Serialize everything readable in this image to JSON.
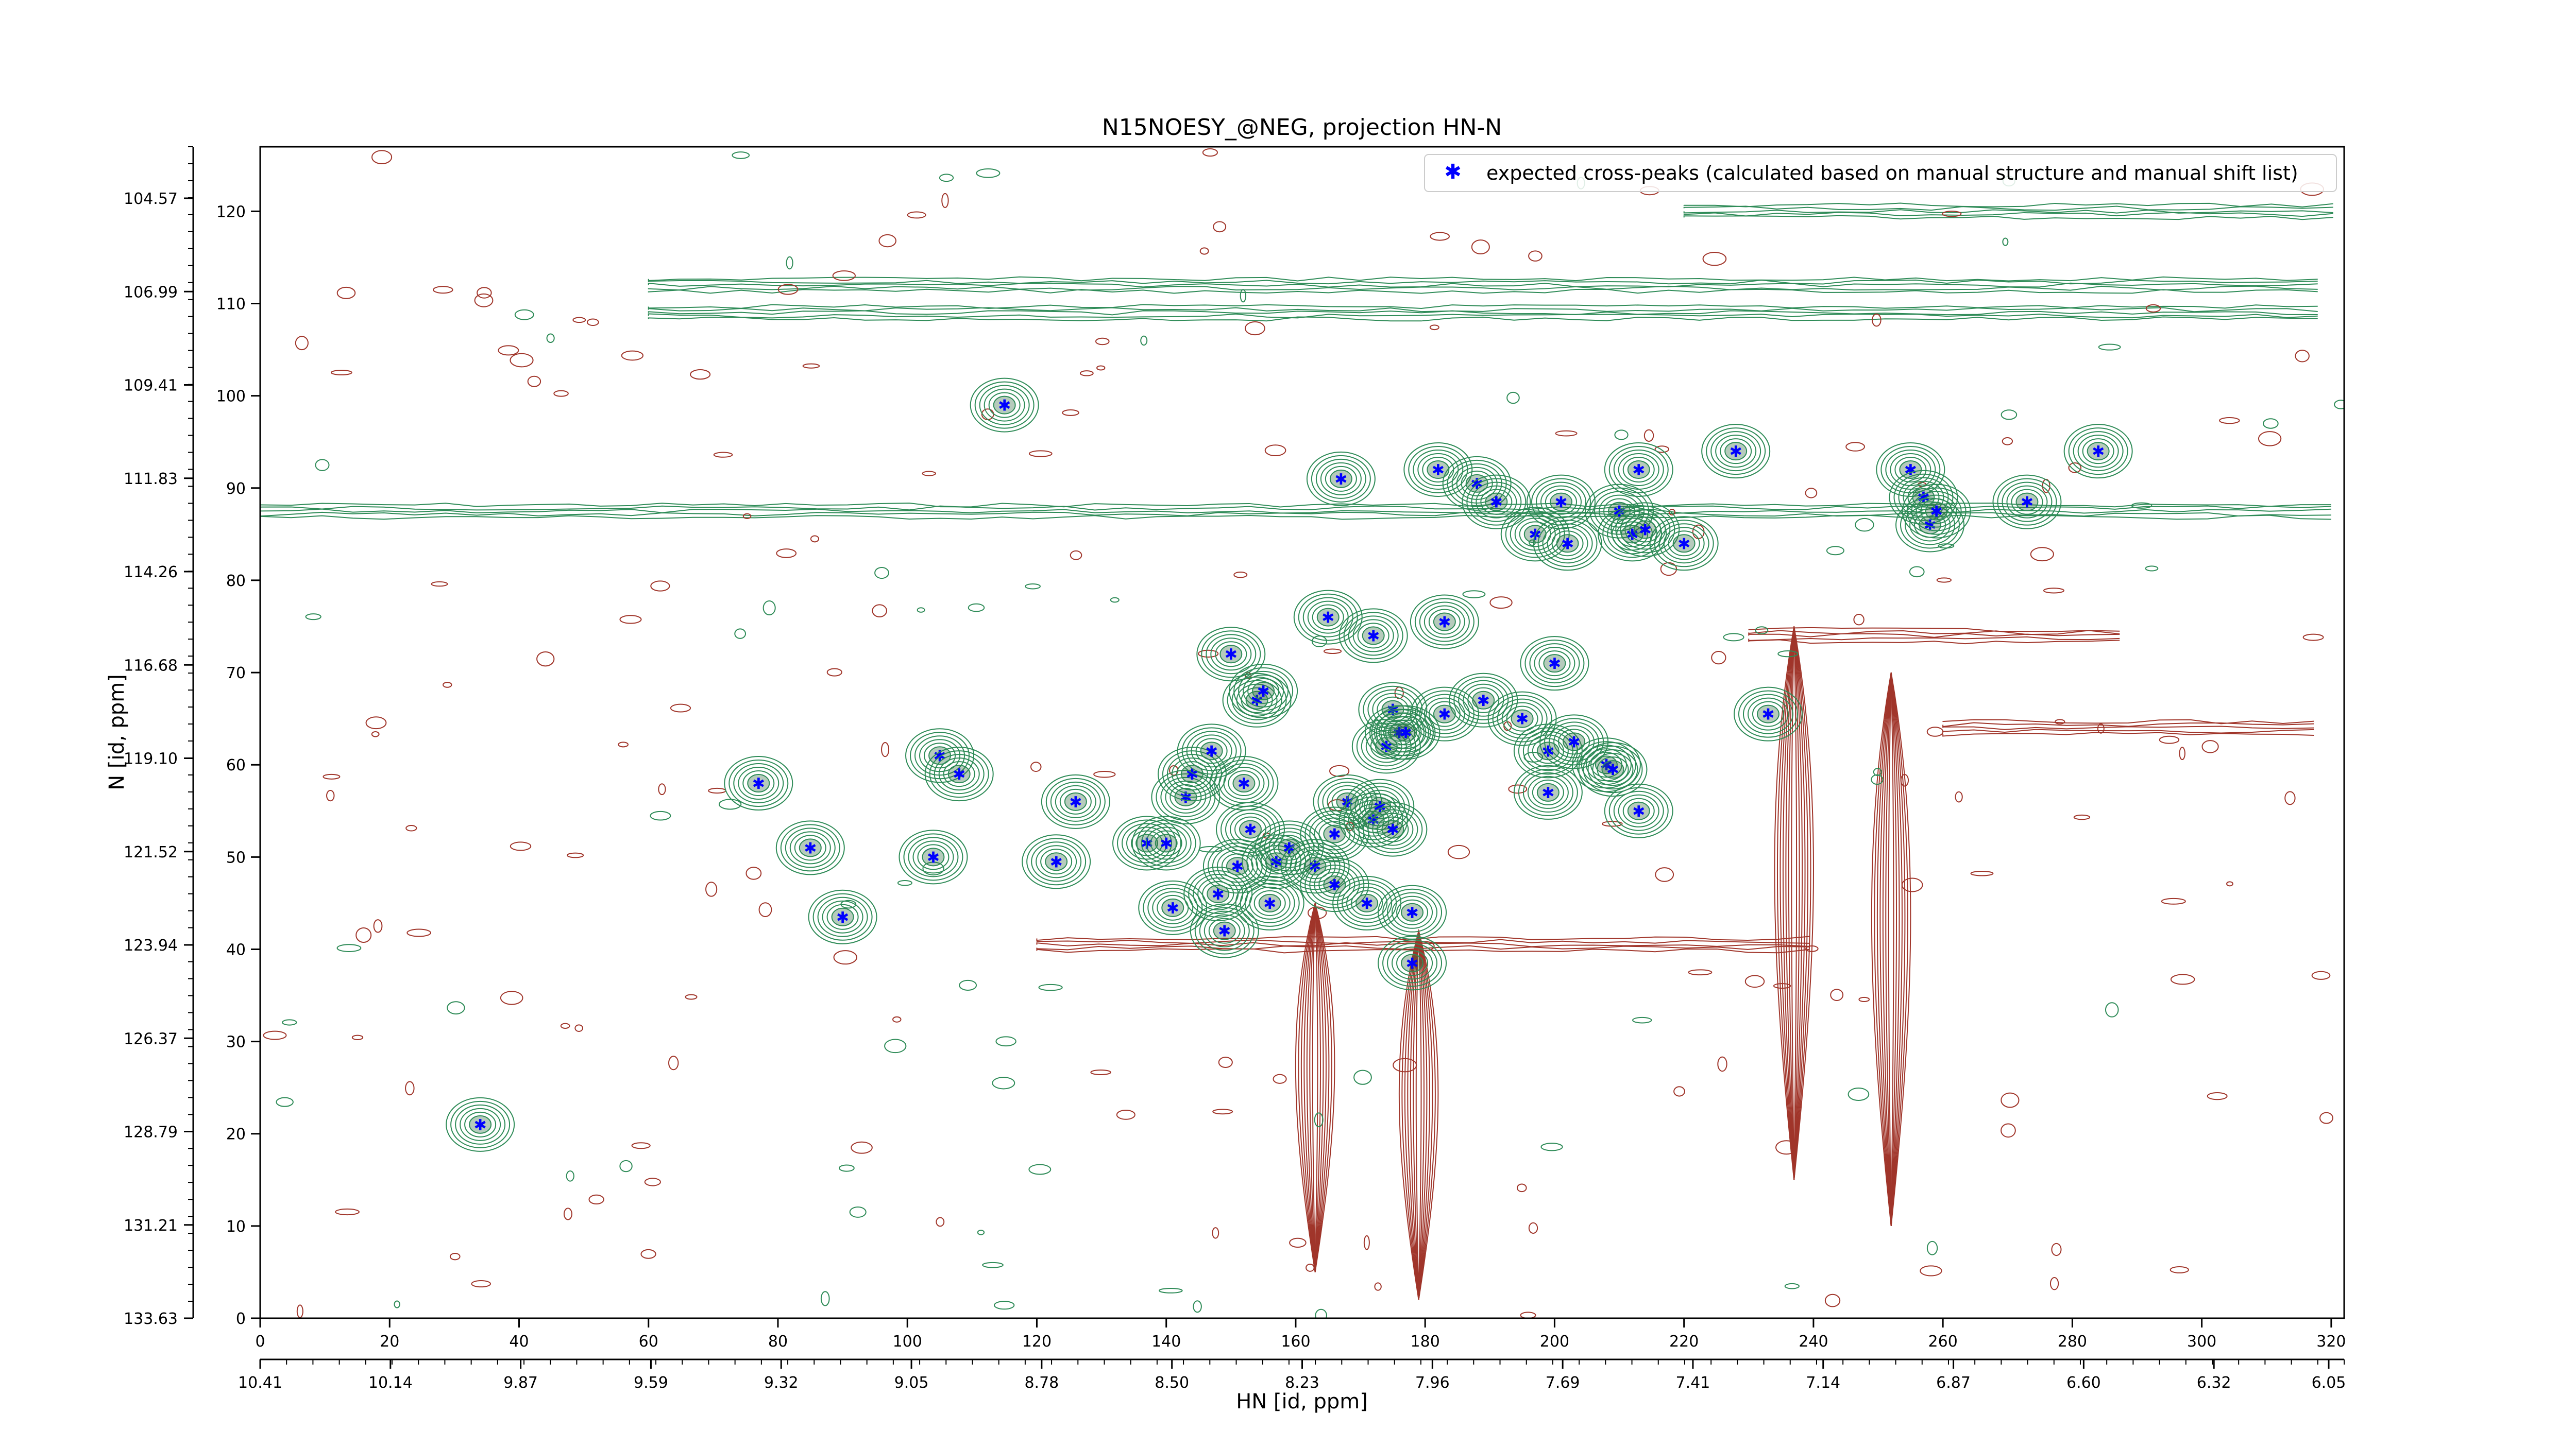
{
  "chart_data": {
    "type": "scatter",
    "title": "N15NOESY_@NEG, projection HN-N",
    "xlabel": "HN [id, ppm]",
    "ylabel": "N [id, ppm]",
    "xlim": [
      0,
      322
    ],
    "ylim": [
      0,
      127
    ],
    "x_ticks": [
      0,
      20,
      40,
      60,
      80,
      100,
      120,
      140,
      160,
      180,
      200,
      220,
      240,
      260,
      280,
      300,
      320
    ],
    "y_ticks": [
      0,
      10,
      20,
      30,
      40,
      50,
      60,
      70,
      80,
      90,
      100,
      110,
      120
    ],
    "x_ppm_ticks": [
      "10.41",
      "10.14",
      "9.87",
      "9.59",
      "9.32",
      "9.05",
      "8.78",
      "8.50",
      "8.23",
      "7.96",
      "7.69",
      "7.41",
      "7.14",
      "6.87",
      "6.60",
      "6.32",
      "6.05"
    ],
    "y_ppm_ticks": [
      "133.63",
      "131.21",
      "128.79",
      "126.37",
      "123.94",
      "121.52",
      "119.10",
      "116.68",
      "114.26",
      "111.83",
      "109.41",
      "106.99",
      "104.57"
    ],
    "legend": {
      "placement": "top-right",
      "label": "expected cross-peaks (calculated based on manual structure and manual shift list)"
    },
    "colors": {
      "positive_contours": "#2e8b57",
      "negative_contours": "#a0352a",
      "peaks": "#0000ff",
      "axis": "#000000"
    },
    "contours": {
      "positive_bands": [
        {
          "y": 87.5,
          "x_from": 0,
          "x_to": 322,
          "label": "green ridge"
        },
        {
          "y": 109,
          "x_from": 60,
          "x_to": 322,
          "label": "green ridge"
        },
        {
          "y": 112,
          "x_from": 60,
          "x_to": 322,
          "label": "green ridge"
        },
        {
          "y": 120,
          "x_from": 220,
          "x_to": 322,
          "label": "green ridge"
        }
      ],
      "negative_bands": [
        {
          "y": 40.5,
          "x_from": 120,
          "x_to": 240,
          "label": "red ridge"
        },
        {
          "y": 74,
          "x_from": 230,
          "x_to": 290,
          "label": "red ridge"
        },
        {
          "y": 64,
          "x_from": 260,
          "x_to": 322,
          "label": "red ridge"
        }
      ],
      "negative_columns": [
        {
          "x": 179,
          "y_from": 2,
          "y_to": 42
        },
        {
          "x": 237,
          "y_from": 15,
          "y_to": 75
        },
        {
          "x": 252,
          "y_from": 10,
          "y_to": 70
        },
        {
          "x": 163,
          "y_from": 5,
          "y_to": 45
        }
      ]
    },
    "series": [
      {
        "name": "expected cross-peaks (calculated based on manual structure and manual shift list)",
        "points": [
          [
            34,
            21
          ],
          [
            77,
            58
          ],
          [
            85,
            51
          ],
          [
            90,
            43.5
          ],
          [
            104,
            50
          ],
          [
            105,
            61
          ],
          [
            108,
            59
          ],
          [
            115,
            99
          ],
          [
            123,
            49.5
          ],
          [
            126,
            56
          ],
          [
            137,
            51.5
          ],
          [
            140,
            51.5
          ],
          [
            141,
            44.5
          ],
          [
            143,
            56.5
          ],
          [
            144,
            59
          ],
          [
            147,
            61.5
          ],
          [
            148,
            46
          ],
          [
            149,
            42
          ],
          [
            150,
            72
          ],
          [
            151,
            49
          ],
          [
            152,
            58
          ],
          [
            153,
            53
          ],
          [
            154,
            67
          ],
          [
            155,
            68
          ],
          [
            156,
            45
          ],
          [
            157,
            49.5
          ],
          [
            159,
            51
          ],
          [
            163,
            49
          ],
          [
            165,
            76
          ],
          [
            166,
            52.5
          ],
          [
            166,
            47
          ],
          [
            167,
            91
          ],
          [
            168,
            56
          ],
          [
            171,
            45
          ],
          [
            172,
            74
          ],
          [
            172,
            54
          ],
          [
            173,
            55.5
          ],
          [
            174,
            62
          ],
          [
            175,
            53
          ],
          [
            175,
            66
          ],
          [
            176,
            63.5
          ],
          [
            177,
            63.5
          ],
          [
            178,
            44
          ],
          [
            178,
            38.5
          ],
          [
            182,
            92
          ],
          [
            183,
            75.5
          ],
          [
            183,
            65.5
          ],
          [
            188,
            90.5
          ],
          [
            189,
            67
          ],
          [
            191,
            88.5
          ],
          [
            195,
            65
          ],
          [
            197,
            85
          ],
          [
            199,
            57
          ],
          [
            199,
            61.5
          ],
          [
            200,
            71
          ],
          [
            201,
            88.5
          ],
          [
            202,
            84
          ],
          [
            203,
            62.5
          ],
          [
            208,
            60
          ],
          [
            209,
            59.5
          ],
          [
            210,
            87.5
          ],
          [
            212,
            85
          ],
          [
            213,
            92
          ],
          [
            213,
            55
          ],
          [
            214,
            85.5
          ],
          [
            220,
            84
          ],
          [
            228,
            94
          ],
          [
            233,
            65.5
          ],
          [
            255,
            92
          ],
          [
            257,
            89
          ],
          [
            258,
            86
          ],
          [
            259,
            87.5
          ],
          [
            273,
            88.5
          ],
          [
            284,
            94
          ]
        ]
      }
    ]
  }
}
